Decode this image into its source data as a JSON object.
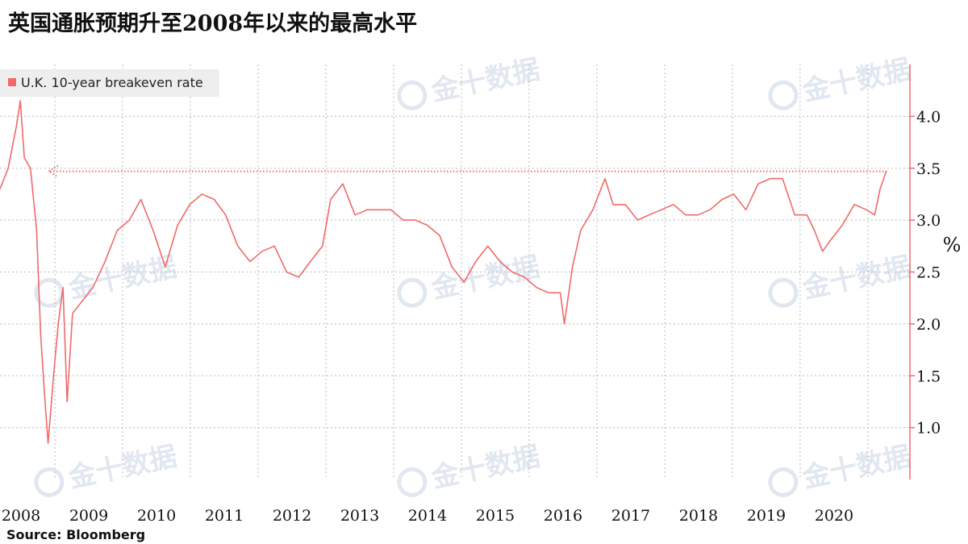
{
  "chart_data": {
    "type": "line",
    "title": "英国通胀预期升至2008年以来的最高水平",
    "source": "Source:  Bloomberg",
    "watermark": "金十数据",
    "y_unit": "%",
    "series": [
      {
        "name": "U.K. 10-year breakeven rate",
        "color": "#f06a6a",
        "values": [
          3.3,
          3.5,
          3.9,
          4.15,
          3.6,
          3.5,
          2.9,
          1.9,
          1.3,
          0.85,
          1.5,
          2.0,
          2.35,
          1.25,
          2.1,
          2.2,
          2.35,
          2.6,
          2.9,
          3.0,
          3.2,
          2.9,
          2.55,
          2.95,
          3.15,
          3.25,
          3.2,
          3.05,
          2.75,
          2.6,
          2.7,
          2.75,
          2.5,
          2.45,
          2.6,
          2.75,
          3.2,
          3.35,
          3.05,
          3.1,
          3.1,
          3.1,
          3.0,
          3.0,
          2.95,
          2.85,
          2.55,
          2.4,
          2.6,
          2.75,
          2.6,
          2.5,
          2.45,
          2.35,
          2.3,
          2.3,
          2.0,
          2.55,
          2.9,
          3.1,
          3.4,
          3.15,
          3.15,
          3.0,
          3.05,
          3.1,
          3.15,
          3.05,
          3.05,
          3.1,
          3.2,
          3.25,
          3.1,
          3.35,
          3.4,
          3.4,
          3.05,
          3.05,
          2.9,
          2.7,
          2.8,
          2.95,
          3.15,
          3.1,
          3.05,
          3.3,
          3.47
        ]
      }
    ],
    "x": [
      2008.19,
      2008.31,
      2008.43,
      2008.49,
      2008.55,
      2008.64,
      2008.73,
      2008.79,
      2008.85,
      2008.9,
      2008.98,
      2009.05,
      2009.12,
      2009.18,
      2009.26,
      2009.38,
      2009.56,
      2009.74,
      2009.92,
      2010.1,
      2010.27,
      2010.45,
      2010.63,
      2010.81,
      2010.99,
      2011.17,
      2011.35,
      2011.52,
      2011.7,
      2011.88,
      2012.06,
      2012.24,
      2012.42,
      2012.6,
      2012.77,
      2012.95,
      2013.07,
      2013.25,
      2013.43,
      2013.61,
      2013.79,
      2013.96,
      2014.14,
      2014.32,
      2014.5,
      2014.68,
      2014.86,
      2015.04,
      2015.21,
      2015.39,
      2015.57,
      2015.75,
      2015.93,
      2016.11,
      2016.29,
      2016.46,
      2016.52,
      2016.64,
      2016.76,
      2016.94,
      2017.12,
      2017.24,
      2017.42,
      2017.6,
      2017.77,
      2017.95,
      2018.13,
      2018.31,
      2018.49,
      2018.67,
      2018.85,
      2019.02,
      2019.2,
      2019.38,
      2019.56,
      2019.74,
      2019.92,
      2020.1,
      2020.21,
      2020.33,
      2020.44,
      2020.62,
      2020.8,
      2020.98,
      2021.1,
      2021.18,
      2021.27
    ],
    "xlim": [
      2008.19,
      2021.62
    ],
    "xticks": [
      {
        "value": 2008.5,
        "label": "2008"
      },
      {
        "value": 2009.5,
        "label": "2009"
      },
      {
        "value": 2010.5,
        "label": "2010"
      },
      {
        "value": 2011.5,
        "label": "2011"
      },
      {
        "value": 2012.5,
        "label": "2012"
      },
      {
        "value": 2013.5,
        "label": "2013"
      },
      {
        "value": 2014.5,
        "label": "2014"
      },
      {
        "value": 2015.5,
        "label": "2015"
      },
      {
        "value": 2016.5,
        "label": "2016"
      },
      {
        "value": 2017.5,
        "label": "2017"
      },
      {
        "value": 2018.5,
        "label": "2018"
      },
      {
        "value": 2019.5,
        "label": "2019"
      },
      {
        "value": 2020.5,
        "label": "2020"
      }
    ],
    "xgrid": [
      2009,
      2010,
      2011,
      2012,
      2013,
      2014,
      2015,
      2016,
      2017,
      2018,
      2019,
      2020,
      2021
    ],
    "ylim": [
      0.5,
      4.5
    ],
    "yticks": [
      {
        "value": 1.0,
        "label": "1.0"
      },
      {
        "value": 1.5,
        "label": "1.5"
      },
      {
        "value": 2.0,
        "label": "2.0"
      },
      {
        "value": 2.5,
        "label": "2.5"
      },
      {
        "value": 3.0,
        "label": "3.0"
      },
      {
        "value": 3.5,
        "label": "3.5"
      },
      {
        "value": 4.0,
        "label": "4.0"
      }
    ],
    "reference_line": 3.47,
    "grid": true,
    "legend": "top-left"
  }
}
